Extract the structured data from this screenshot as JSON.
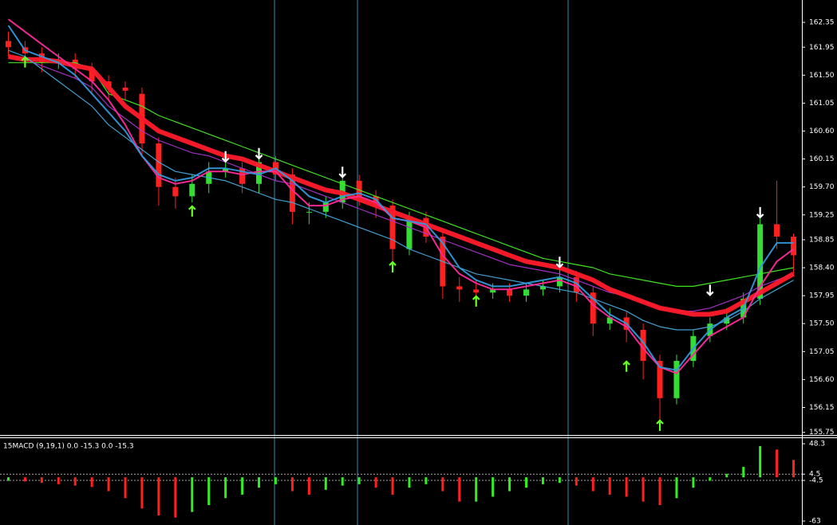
{
  "chart_data": [
    {
      "type": "candlestick",
      "ylim": [
        155.72,
        162.71
      ],
      "yticks": [
        162.35,
        {
          "value": 161.95,
          "label": "161.95"
        },
        {
          "value": 161.5,
          "label": "161.50"
        },
        {
          "value": 161.05,
          "label": "161.05"
        },
        {
          "value": 160.6,
          "label": "160.60"
        },
        160.15,
        {
          "value": 159.7,
          "label": "159.70"
        },
        159.25,
        158.85,
        {
          "value": 158.4,
          "label": "158.40"
        },
        157.95,
        {
          "value": 157.5,
          "label": "157.50"
        },
        157.05,
        {
          "value": 156.6,
          "label": "156.60"
        },
        156.15,
        155.75
      ],
      "up_color": "#33dd33",
      "down_color": "#ff2020",
      "open": [
        162.05,
        161.95,
        161.85,
        161.7,
        161.75,
        161.6,
        161.4,
        161.3,
        161.2,
        160.4,
        159.7,
        159.55,
        159.75,
        159.95,
        160.0,
        159.75,
        160.1,
        159.9,
        159.3,
        159.3,
        159.45,
        159.8,
        159.55,
        159.4,
        158.7,
        159.2,
        158.9,
        158.1,
        158.05,
        158.0,
        158.05,
        157.95,
        158.05,
        158.1,
        158.25,
        158.0,
        157.5,
        157.6,
        157.4,
        156.9,
        156.3,
        156.9,
        157.3,
        157.5,
        157.6,
        157.9,
        159.1,
        158.9
      ],
      "high": [
        162.2,
        162.05,
        161.95,
        161.85,
        161.85,
        161.7,
        161.5,
        161.4,
        161.3,
        160.5,
        159.85,
        159.9,
        160.1,
        160.15,
        160.1,
        160.2,
        160.2,
        160.0,
        159.45,
        159.55,
        159.9,
        159.9,
        159.65,
        159.5,
        159.3,
        159.3,
        159.0,
        158.25,
        158.2,
        158.15,
        158.15,
        158.15,
        158.2,
        158.4,
        158.35,
        158.1,
        157.75,
        157.7,
        157.5,
        157.0,
        157.0,
        157.4,
        157.6,
        157.75,
        158.0,
        159.35,
        159.8,
        158.95
      ],
      "low": [
        161.8,
        161.7,
        161.55,
        161.6,
        161.45,
        161.2,
        161.1,
        161.1,
        160.2,
        159.4,
        159.35,
        159.45,
        159.6,
        159.85,
        159.6,
        159.6,
        159.8,
        159.1,
        159.1,
        159.2,
        159.35,
        159.4,
        159.2,
        158.5,
        158.6,
        158.8,
        157.9,
        157.85,
        157.85,
        157.9,
        157.85,
        157.85,
        157.95,
        158.0,
        157.85,
        157.3,
        157.4,
        157.2,
        156.6,
        155.9,
        156.2,
        156.8,
        157.2,
        157.4,
        157.5,
        157.8,
        158.7,
        158.3
      ],
      "close": [
        161.95,
        161.85,
        161.7,
        161.75,
        161.6,
        161.4,
        161.3,
        161.25,
        160.4,
        159.7,
        159.55,
        159.75,
        159.95,
        160.0,
        159.75,
        160.1,
        159.9,
        159.3,
        159.3,
        159.45,
        159.8,
        159.55,
        159.4,
        158.7,
        159.2,
        158.9,
        158.1,
        158.05,
        158.0,
        158.05,
        157.95,
        158.05,
        158.1,
        158.25,
        158.0,
        157.5,
        157.6,
        157.4,
        156.9,
        156.3,
        156.9,
        157.3,
        157.5,
        157.6,
        157.9,
        159.1,
        158.9,
        158.6
      ],
      "lines": [
        {
          "color": "#44ee22",
          "width": 1.2,
          "values": [
            161.7,
            161.7,
            161.7,
            161.7,
            161.7,
            161.6,
            161.2,
            161.1,
            161.0,
            160.85,
            160.75,
            160.65,
            160.55,
            160.45,
            160.35,
            160.25,
            160.15,
            160.05,
            159.95,
            159.85,
            159.75,
            159.65,
            159.55,
            159.45,
            159.35,
            159.25,
            159.15,
            159.05,
            158.95,
            158.85,
            158.75,
            158.65,
            158.55,
            158.5,
            158.45,
            158.4,
            158.3,
            158.25,
            158.2,
            158.15,
            158.1,
            158.1,
            158.15,
            158.2,
            158.25,
            158.3,
            158.35,
            158.4
          ]
        },
        {
          "color": "#aa33cc",
          "width": 1.2,
          "values": [
            161.8,
            161.75,
            161.65,
            161.55,
            161.45,
            161.3,
            161.0,
            160.8,
            160.6,
            160.45,
            160.35,
            160.25,
            160.2,
            160.1,
            160.0,
            159.9,
            159.8,
            159.75,
            159.65,
            159.55,
            159.45,
            159.35,
            159.25,
            159.15,
            159.05,
            158.95,
            158.85,
            158.75,
            158.65,
            158.55,
            158.45,
            158.4,
            158.35,
            158.3,
            158.2,
            158.1,
            158.0,
            157.95,
            157.85,
            157.75,
            157.7,
            157.7,
            157.75,
            157.85,
            157.95,
            158.1,
            158.2,
            158.3
          ]
        },
        {
          "color": "#ff1a2a",
          "width": 6,
          "values": [
            161.8,
            161.75,
            161.75,
            161.72,
            161.65,
            161.6,
            161.3,
            161.0,
            160.8,
            160.6,
            160.5,
            160.4,
            160.3,
            160.2,
            160.15,
            160.05,
            159.95,
            159.85,
            159.75,
            159.65,
            159.6,
            159.5,
            159.4,
            159.3,
            159.2,
            159.1,
            159.0,
            158.9,
            158.8,
            158.7,
            158.6,
            158.5,
            158.45,
            158.4,
            158.3,
            158.2,
            158.05,
            157.95,
            157.85,
            157.75,
            157.7,
            157.65,
            157.65,
            157.7,
            157.85,
            158.0,
            158.15,
            158.3
          ]
        },
        {
          "color": "#44aadd",
          "width": 1.2,
          "values": [
            161.9,
            161.8,
            161.6,
            161.4,
            161.2,
            161.0,
            160.7,
            160.5,
            160.3,
            160.1,
            159.95,
            159.9,
            159.85,
            159.8,
            159.7,
            159.6,
            159.5,
            159.45,
            159.35,
            159.25,
            159.15,
            159.05,
            158.95,
            158.85,
            158.7,
            158.6,
            158.5,
            158.4,
            158.3,
            158.25,
            158.2,
            158.15,
            158.1,
            158.05,
            158.0,
            157.9,
            157.8,
            157.7,
            157.55,
            157.45,
            157.4,
            157.4,
            157.45,
            157.55,
            157.7,
            157.9,
            158.05,
            158.2
          ]
        },
        {
          "color": "#ff2a9a",
          "width": 2,
          "values": [
            162.4,
            162.2,
            162.0,
            161.8,
            161.6,
            161.4,
            161.1,
            160.7,
            160.2,
            159.85,
            159.75,
            159.8,
            159.95,
            159.95,
            159.9,
            159.95,
            159.95,
            159.65,
            159.4,
            159.4,
            159.5,
            159.55,
            159.45,
            159.2,
            159.15,
            159.05,
            158.6,
            158.3,
            158.15,
            158.05,
            158.05,
            158.1,
            158.15,
            158.2,
            158.1,
            157.8,
            157.6,
            157.45,
            157.1,
            156.8,
            156.7,
            157.0,
            157.3,
            157.45,
            157.6,
            158.1,
            158.5,
            158.7
          ]
        },
        {
          "color": "#3399dd",
          "width": 2,
          "values": [
            162.3,
            161.9,
            161.8,
            161.7,
            161.5,
            161.2,
            160.9,
            160.6,
            160.2,
            159.9,
            159.8,
            159.85,
            160.0,
            160.0,
            159.95,
            159.9,
            160.0,
            159.8,
            159.55,
            159.45,
            159.55,
            159.6,
            159.5,
            159.2,
            159.15,
            159.1,
            158.8,
            158.4,
            158.2,
            158.1,
            158.1,
            158.15,
            158.2,
            158.25,
            158.15,
            157.9,
            157.65,
            157.5,
            157.2,
            156.8,
            156.75,
            157.1,
            157.4,
            157.6,
            157.75,
            158.4,
            158.8,
            158.8
          ]
        }
      ],
      "signals": [
        {
          "index": 1,
          "price": 161.7,
          "dir": "up",
          "color": "#66ff22"
        },
        {
          "index": 11,
          "price": 159.3,
          "dir": "up",
          "color": "#66ff22"
        },
        {
          "index": 23,
          "price": 158.4,
          "dir": "up",
          "color": "#66ff22"
        },
        {
          "index": 28,
          "price": 157.85,
          "dir": "up",
          "color": "#66ff22"
        },
        {
          "index": 37,
          "price": 156.8,
          "dir": "up",
          "color": "#66ff22"
        },
        {
          "index": 39,
          "price": 155.85,
          "dir": "up",
          "color": "#66ff22"
        },
        {
          "index": 13,
          "price": 160.2,
          "dir": "down",
          "color": "#ffffff"
        },
        {
          "index": 15,
          "price": 160.25,
          "dir": "down",
          "color": "#ffffff"
        },
        {
          "index": 20,
          "price": 159.95,
          "dir": "down",
          "color": "#ffffff"
        },
        {
          "index": 33,
          "price": 158.5,
          "dir": "down",
          "color": "#ffffff"
        },
        {
          "index": 42,
          "price": 158.05,
          "dir": "down",
          "color": "#ffffff"
        },
        {
          "index": 45,
          "price": 159.3,
          "dir": "down",
          "color": "#ffffff"
        }
      ]
    },
    {
      "type": "bar",
      "title": "15MACD (9,19,1) 0.0 -15.3 0.0 -15.3",
      "ylim": [
        -68.7,
        57.5
      ],
      "yticks": [
        48.3,
        4.5,
        -4.5,
        -63
      ],
      "rise_color": "#33ee22",
      "fall_color": "#ff2020",
      "values": [
        -5,
        -6,
        -8,
        -10,
        -12,
        -14,
        -20,
        -30,
        -45,
        -55,
        -58,
        -50,
        -40,
        -30,
        -25,
        -15,
        -10,
        -20,
        -25,
        -18,
        -12,
        -10,
        -15,
        -25,
        -15,
        -10,
        -20,
        -35,
        -35,
        -28,
        -20,
        -15,
        -10,
        -8,
        -12,
        -20,
        -25,
        -28,
        -35,
        -40,
        -30,
        -15,
        -5,
        5,
        15,
        45,
        40,
        25
      ]
    }
  ]
}
